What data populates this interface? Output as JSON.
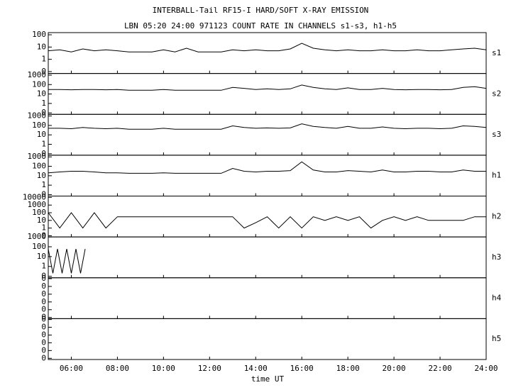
{
  "chart_data": [
    {
      "type": "line",
      "title": "INTERBALL-Tail RF15-I HARD/SOFT X-RAY EMISSION",
      "subtitle": "LBN 05:20 24:00 971123  COUNT RATE IN CHANNELS s1-s3, h1-h5",
      "label": "s1",
      "scale": "log",
      "color": "#000000",
      "xlim": [
        5,
        24
      ],
      "ylim": [
        0.07,
        150
      ],
      "yticks": [
        {
          "value": 0.1,
          "label": "0"
        },
        1,
        10,
        100
      ],
      "x": [
        5,
        5.5,
        6,
        6.5,
        7,
        7.5,
        8,
        8.5,
        9,
        9.5,
        10,
        10.5,
        11,
        11.5,
        12,
        12.5,
        13,
        13.5,
        14,
        14.5,
        15,
        15.5,
        16,
        16.5,
        17,
        17.5,
        18,
        18.5,
        19,
        19.5,
        20,
        20.5,
        21,
        21.5,
        22,
        22.5,
        23,
        23.5,
        24
      ],
      "values": [
        5,
        6,
        4,
        7,
        5,
        6,
        5,
        4,
        4,
        4,
        6,
        4,
        8,
        4,
        4,
        4,
        6,
        5,
        6,
        5,
        5,
        7,
        20,
        8,
        6,
        5,
        6,
        5,
        5,
        6,
        5,
        5,
        6,
        5,
        5,
        6,
        7,
        8,
        6
      ]
    },
    {
      "type": "line",
      "label": "s2",
      "scale": "log",
      "color": "#000000",
      "xlim": [
        5,
        24
      ],
      "ylim": [
        0.07,
        1500
      ],
      "yticks": [
        {
          "value": 0.1,
          "label": "0"
        },
        1,
        10,
        100,
        1000
      ],
      "x": [
        5,
        5.5,
        6,
        6.5,
        7,
        7.5,
        8,
        8.5,
        9,
        9.5,
        10,
        10.5,
        11,
        11.5,
        12,
        12.5,
        13,
        13.5,
        14,
        14.5,
        15,
        15.5,
        16,
        16.5,
        17,
        17.5,
        18,
        18.5,
        19,
        19.5,
        20,
        20.5,
        21,
        21.5,
        22,
        22.5,
        23,
        23.5,
        24
      ],
      "values": [
        30,
        30,
        28,
        30,
        30,
        28,
        30,
        25,
        25,
        25,
        30,
        25,
        25,
        25,
        25,
        25,
        50,
        40,
        30,
        35,
        30,
        35,
        90,
        50,
        35,
        30,
        45,
        30,
        30,
        40,
        30,
        28,
        30,
        30,
        28,
        30,
        50,
        60,
        40
      ]
    },
    {
      "type": "line",
      "label": "s3",
      "scale": "log",
      "color": "#000000",
      "xlim": [
        5,
        24
      ],
      "ylim": [
        0.07,
        1500
      ],
      "yticks": [
        {
          "value": 0.1,
          "label": "0"
        },
        1,
        10,
        100,
        1000
      ],
      "x": [
        5,
        5.5,
        6,
        6.5,
        7,
        7.5,
        8,
        8.5,
        9,
        9.5,
        10,
        10.5,
        11,
        11.5,
        12,
        12.5,
        13,
        13.5,
        14,
        14.5,
        15,
        15.5,
        16,
        16.5,
        17,
        17.5,
        18,
        18.5,
        19,
        19.5,
        20,
        20.5,
        21,
        21.5,
        22,
        22.5,
        23,
        23.5,
        24
      ],
      "values": [
        50,
        50,
        45,
        60,
        50,
        45,
        50,
        40,
        40,
        40,
        50,
        40,
        40,
        40,
        40,
        40,
        90,
        60,
        50,
        55,
        50,
        55,
        150,
        80,
        60,
        50,
        80,
        50,
        50,
        70,
        50,
        45,
        50,
        50,
        45,
        50,
        90,
        80,
        60
      ]
    },
    {
      "type": "line",
      "label": "h1",
      "scale": "log",
      "color": "#000000",
      "xlim": [
        5,
        24
      ],
      "ylim": [
        0.07,
        1500
      ],
      "yticks": [
        {
          "value": 0.1,
          "label": "0"
        },
        1,
        10,
        100,
        1000
      ],
      "x": [
        5,
        5.5,
        6,
        6.5,
        7,
        7.5,
        8,
        8.5,
        9,
        9.5,
        10,
        10.5,
        11,
        11.5,
        12,
        12.5,
        13,
        13.5,
        14,
        14.5,
        15,
        15.5,
        16,
        16.5,
        17,
        17.5,
        18,
        18.5,
        19,
        19.5,
        20,
        20.5,
        21,
        21.5,
        22,
        22.5,
        23,
        23.5,
        24
      ],
      "values": [
        20,
        25,
        30,
        30,
        25,
        20,
        20,
        18,
        18,
        18,
        20,
        18,
        18,
        18,
        18,
        18,
        60,
        30,
        25,
        30,
        30,
        35,
        300,
        40,
        25,
        25,
        35,
        30,
        25,
        40,
        25,
        25,
        30,
        30,
        25,
        25,
        40,
        30,
        30
      ]
    },
    {
      "type": "line",
      "label": "h2",
      "scale": "log",
      "color": "#000000",
      "xlim": [
        5,
        24
      ],
      "ylim": [
        0.07,
        15000
      ],
      "yticks": [
        {
          "value": 0.1,
          "label": "0"
        },
        1,
        10,
        100,
        1000,
        10000
      ],
      "x": [
        5,
        5.5,
        6,
        6.5,
        7,
        7.5,
        8,
        8.5,
        9,
        9.5,
        10,
        10.5,
        11,
        11.5,
        12,
        12.5,
        13,
        13.5,
        14,
        14.5,
        15,
        15.5,
        16,
        16.5,
        17,
        17.5,
        18,
        18.5,
        19,
        19.5,
        20,
        20.5,
        21,
        21.5,
        22,
        22.5,
        23,
        23.5,
        24
      ],
      "values": [
        100,
        1,
        100,
        1,
        100,
        1,
        30,
        30,
        30,
        30,
        30,
        30,
        30,
        30,
        30,
        30,
        30,
        1,
        5,
        30,
        1,
        30,
        1,
        30,
        10,
        30,
        10,
        30,
        1,
        10,
        30,
        10,
        30,
        10,
        10,
        10,
        10,
        30,
        30
      ]
    },
    {
      "type": "line",
      "label": "h3",
      "scale": "log",
      "color": "#000000",
      "xlim": [
        5,
        24
      ],
      "ylim": [
        0.07,
        1000
      ],
      "yticks": [
        {
          "value": 0.1,
          "label": "0"
        },
        1,
        10,
        100,
        1000
      ],
      "x": [
        5,
        5.2,
        5.4,
        5.6,
        5.8,
        6,
        6.2,
        6.4,
        6.6
      ],
      "values": [
        60,
        0.2,
        60,
        0.2,
        60,
        0.2,
        60,
        0.2,
        60
      ]
    },
    {
      "type": "line",
      "label": "h4",
      "scale": "log",
      "color": "#000000",
      "xlim": [
        5,
        24
      ],
      "ylim": [
        7e-07,
        0.13
      ],
      "yticks": [
        {
          "value": 1e-06,
          "label": "0"
        },
        {
          "value": 1e-05,
          "label": "0"
        },
        {
          "value": 0.0001,
          "label": "0"
        },
        {
          "value": 0.001,
          "label": "0"
        },
        {
          "value": 0.01,
          "label": "0"
        },
        {
          "value": 0.1,
          "label": "0"
        }
      ],
      "x": [],
      "values": []
    },
    {
      "type": "line",
      "label": "h5",
      "scale": "log",
      "color": "#000000",
      "xlim": [
        5,
        24
      ],
      "ylim": [
        7e-07,
        0.13
      ],
      "yticks": [
        {
          "value": 1e-06,
          "label": "0"
        },
        {
          "value": 1e-05,
          "label": "0"
        },
        {
          "value": 0.0001,
          "label": "0"
        },
        {
          "value": 0.001,
          "label": "0"
        },
        {
          "value": 0.01,
          "label": "0"
        },
        {
          "value": 0.1,
          "label": "0"
        }
      ],
      "x": [],
      "values": [],
      "xlabel": "time UT",
      "xticks": [
        {
          "value": 6,
          "label": "06:00"
        },
        {
          "value": 8,
          "label": "08:00"
        },
        {
          "value": 10,
          "label": "10:00"
        },
        {
          "value": 12,
          "label": "12:00"
        },
        {
          "value": 14,
          "label": "14:00"
        },
        {
          "value": 16,
          "label": "16:00"
        },
        {
          "value": 18,
          "label": "18:00"
        },
        {
          "value": 20,
          "label": "20:00"
        },
        {
          "value": 22,
          "label": "22:00"
        },
        {
          "value": 24,
          "label": "24:00"
        }
      ]
    }
  ]
}
